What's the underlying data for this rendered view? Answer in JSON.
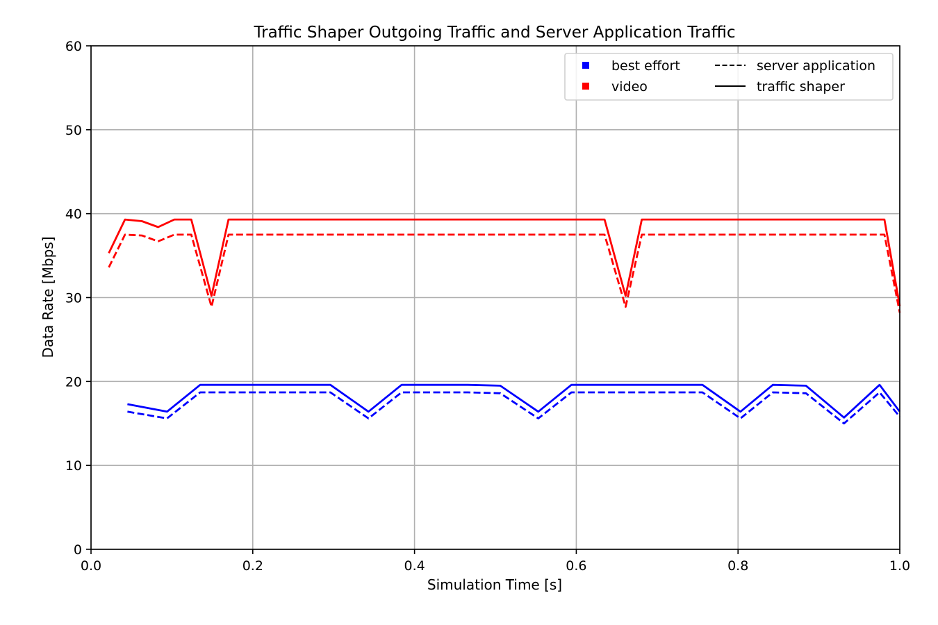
{
  "chart_data": {
    "type": "line",
    "title": "Traffic Shaper Outgoing Traffic and Server Application Traffic",
    "xlabel": "Simulation Time [s]",
    "ylabel": "Data Rate [Mbps]",
    "xlim": [
      0.0,
      1.0
    ],
    "ylim": [
      0,
      60
    ],
    "xticks": [
      0.0,
      0.2,
      0.4,
      0.6,
      0.8,
      1.0
    ],
    "xtick_labels": [
      "0.0",
      "0.2",
      "0.4",
      "0.6",
      "0.8",
      "1.0"
    ],
    "yticks": [
      0,
      10,
      20,
      30,
      40,
      50,
      60
    ],
    "ytick_labels": [
      "0",
      "10",
      "20",
      "30",
      "40",
      "50",
      "60"
    ],
    "grid": true,
    "legend_placement": "top-right",
    "legend": {
      "colors": [
        {
          "label": "best effort",
          "color": "#0000ff"
        },
        {
          "label": "video",
          "color": "#ff0000"
        }
      ],
      "styles": [
        {
          "label": "server application",
          "dash": "dashed"
        },
        {
          "label": "traffic shaper",
          "dash": "solid"
        }
      ]
    },
    "series": [
      {
        "traffic_class": "video",
        "source": "traffic shaper",
        "color": "#ff0000",
        "dash": "solid",
        "points": [
          [
            0.022,
            35.3
          ],
          [
            0.042,
            39.3
          ],
          [
            0.063,
            39.1
          ],
          [
            0.083,
            38.4
          ],
          [
            0.103,
            39.3
          ],
          [
            0.124,
            39.3
          ],
          [
            0.149,
            30.2
          ],
          [
            0.17,
            39.3
          ],
          [
            0.635,
            39.3
          ],
          [
            0.661,
            30.2
          ],
          [
            0.681,
            39.3
          ],
          [
            0.981,
            39.3
          ],
          [
            1.0,
            29.0
          ]
        ]
      },
      {
        "traffic_class": "video",
        "source": "server application",
        "color": "#ff0000",
        "dash": "dashed",
        "points": [
          [
            0.022,
            33.6
          ],
          [
            0.042,
            37.5
          ],
          [
            0.063,
            37.4
          ],
          [
            0.083,
            36.7
          ],
          [
            0.103,
            37.5
          ],
          [
            0.124,
            37.5
          ],
          [
            0.149,
            28.9
          ],
          [
            0.17,
            37.5
          ],
          [
            0.635,
            37.5
          ],
          [
            0.661,
            28.9
          ],
          [
            0.681,
            37.5
          ],
          [
            0.981,
            37.5
          ],
          [
            1.0,
            28.2
          ]
        ]
      },
      {
        "traffic_class": "best effort",
        "source": "traffic shaper",
        "color": "#0000ff",
        "dash": "solid",
        "points": [
          [
            0.045,
            17.3
          ],
          [
            0.094,
            16.4
          ],
          [
            0.135,
            19.6
          ],
          [
            0.296,
            19.6
          ],
          [
            0.343,
            16.4
          ],
          [
            0.384,
            19.6
          ],
          [
            0.466,
            19.6
          ],
          [
            0.506,
            19.5
          ],
          [
            0.553,
            16.4
          ],
          [
            0.594,
            19.6
          ],
          [
            0.756,
            19.6
          ],
          [
            0.803,
            16.4
          ],
          [
            0.843,
            19.6
          ],
          [
            0.884,
            19.5
          ],
          [
            0.931,
            15.7
          ],
          [
            0.975,
            19.6
          ],
          [
            1.0,
            16.4
          ]
        ]
      },
      {
        "traffic_class": "best effort",
        "source": "server application",
        "color": "#0000ff",
        "dash": "dashed",
        "points": [
          [
            0.045,
            16.4
          ],
          [
            0.094,
            15.6
          ],
          [
            0.135,
            18.7
          ],
          [
            0.296,
            18.7
          ],
          [
            0.343,
            15.6
          ],
          [
            0.384,
            18.7
          ],
          [
            0.466,
            18.7
          ],
          [
            0.506,
            18.6
          ],
          [
            0.553,
            15.6
          ],
          [
            0.594,
            18.7
          ],
          [
            0.756,
            18.7
          ],
          [
            0.803,
            15.6
          ],
          [
            0.843,
            18.7
          ],
          [
            0.884,
            18.6
          ],
          [
            0.931,
            15.0
          ],
          [
            0.975,
            18.7
          ],
          [
            1.0,
            15.8
          ]
        ]
      }
    ]
  }
}
